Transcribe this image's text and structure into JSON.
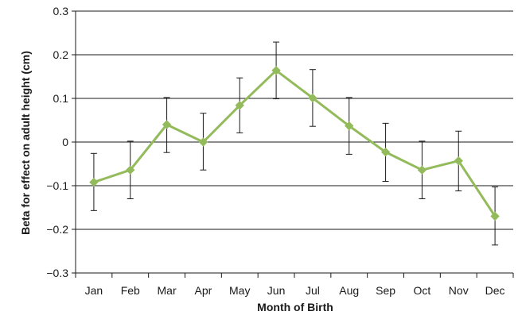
{
  "chart_data": {
    "type": "line",
    "title": "",
    "xlabel": "Month of Birth",
    "ylabel": "Beta for effect on adult height (cm)",
    "categories": [
      "Jan",
      "Feb",
      "Mar",
      "Apr",
      "May",
      "Jun",
      "Jul",
      "Aug",
      "Sep",
      "Oct",
      "Nov",
      "Dec"
    ],
    "ylim": [
      -0.3,
      0.3
    ],
    "yticks": [
      0.3,
      0.2,
      0.1,
      0,
      -0.1,
      -0.2,
      -0.3
    ],
    "ytick_labels": [
      "0.3",
      "0.2",
      "0.1",
      "0",
      "−0.1",
      "−0.2",
      "−0.3"
    ],
    "grid": true,
    "legend": "none",
    "series": [
      {
        "values": [
          -0.092,
          -0.064,
          0.04,
          0.0,
          0.084,
          0.164,
          0.101,
          0.037,
          -0.023,
          -0.064,
          -0.043,
          -0.17
        ],
        "error_low": [
          -0.157,
          -0.13,
          -0.024,
          -0.064,
          0.021,
          0.099,
          0.036,
          -0.028,
          -0.09,
          -0.13,
          -0.112,
          -0.236
        ],
        "error_high": [
          -0.026,
          0.002,
          0.102,
          0.066,
          0.147,
          0.229,
          0.166,
          0.102,
          0.043,
          0.002,
          0.025,
          -0.103
        ],
        "color": "#93bb5c",
        "marker": "diamond"
      }
    ],
    "colors": {
      "line": "#93bb5c",
      "grid": "#1a1a1a",
      "error_bar": "#1a1a1a"
    }
  }
}
